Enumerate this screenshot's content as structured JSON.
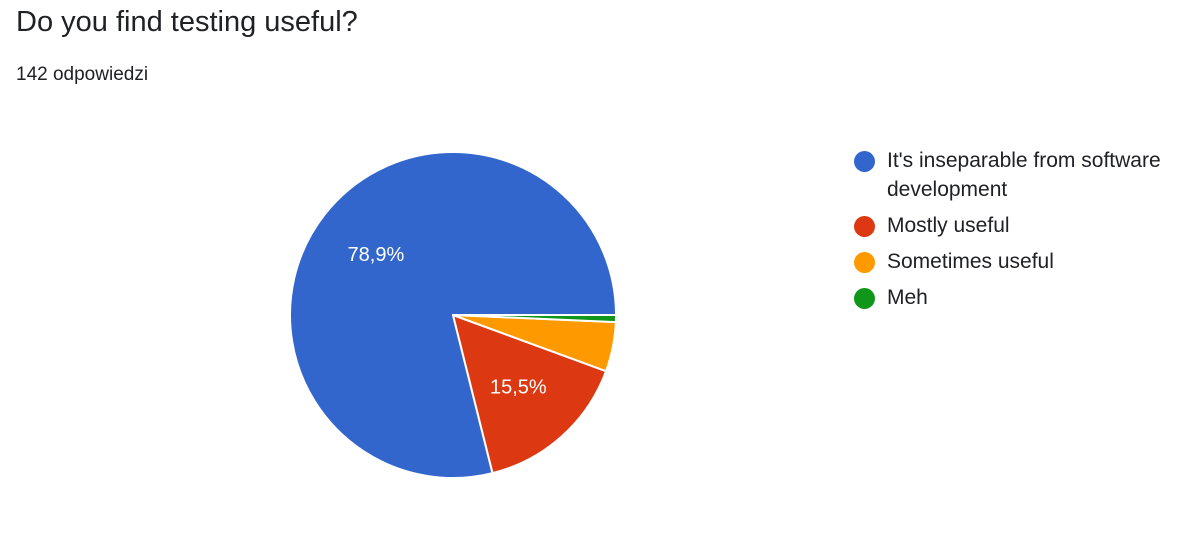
{
  "title": "Do you find testing useful?",
  "subtitle": "142 odpowiedzi",
  "chart_data": {
    "type": "pie",
    "title": "Do you find testing useful?",
    "subtitle": "142 odpowiedzi",
    "total_responses": 142,
    "legend_position": "right",
    "start_angle_deg": 0,
    "direction": "counterclockwise",
    "slices": [
      {
        "label": "It's inseparable from software development",
        "value": 78.9,
        "data_label": "78,9%",
        "color": "#3366cc"
      },
      {
        "label": "Mostly useful",
        "value": 15.5,
        "data_label": "15,5%",
        "color": "#dc3912"
      },
      {
        "label": "Sometimes useful",
        "value": 4.9,
        "data_label": "",
        "color": "#ff9900"
      },
      {
        "label": "Meh",
        "value": 0.7,
        "data_label": "",
        "color": "#109618"
      }
    ]
  }
}
